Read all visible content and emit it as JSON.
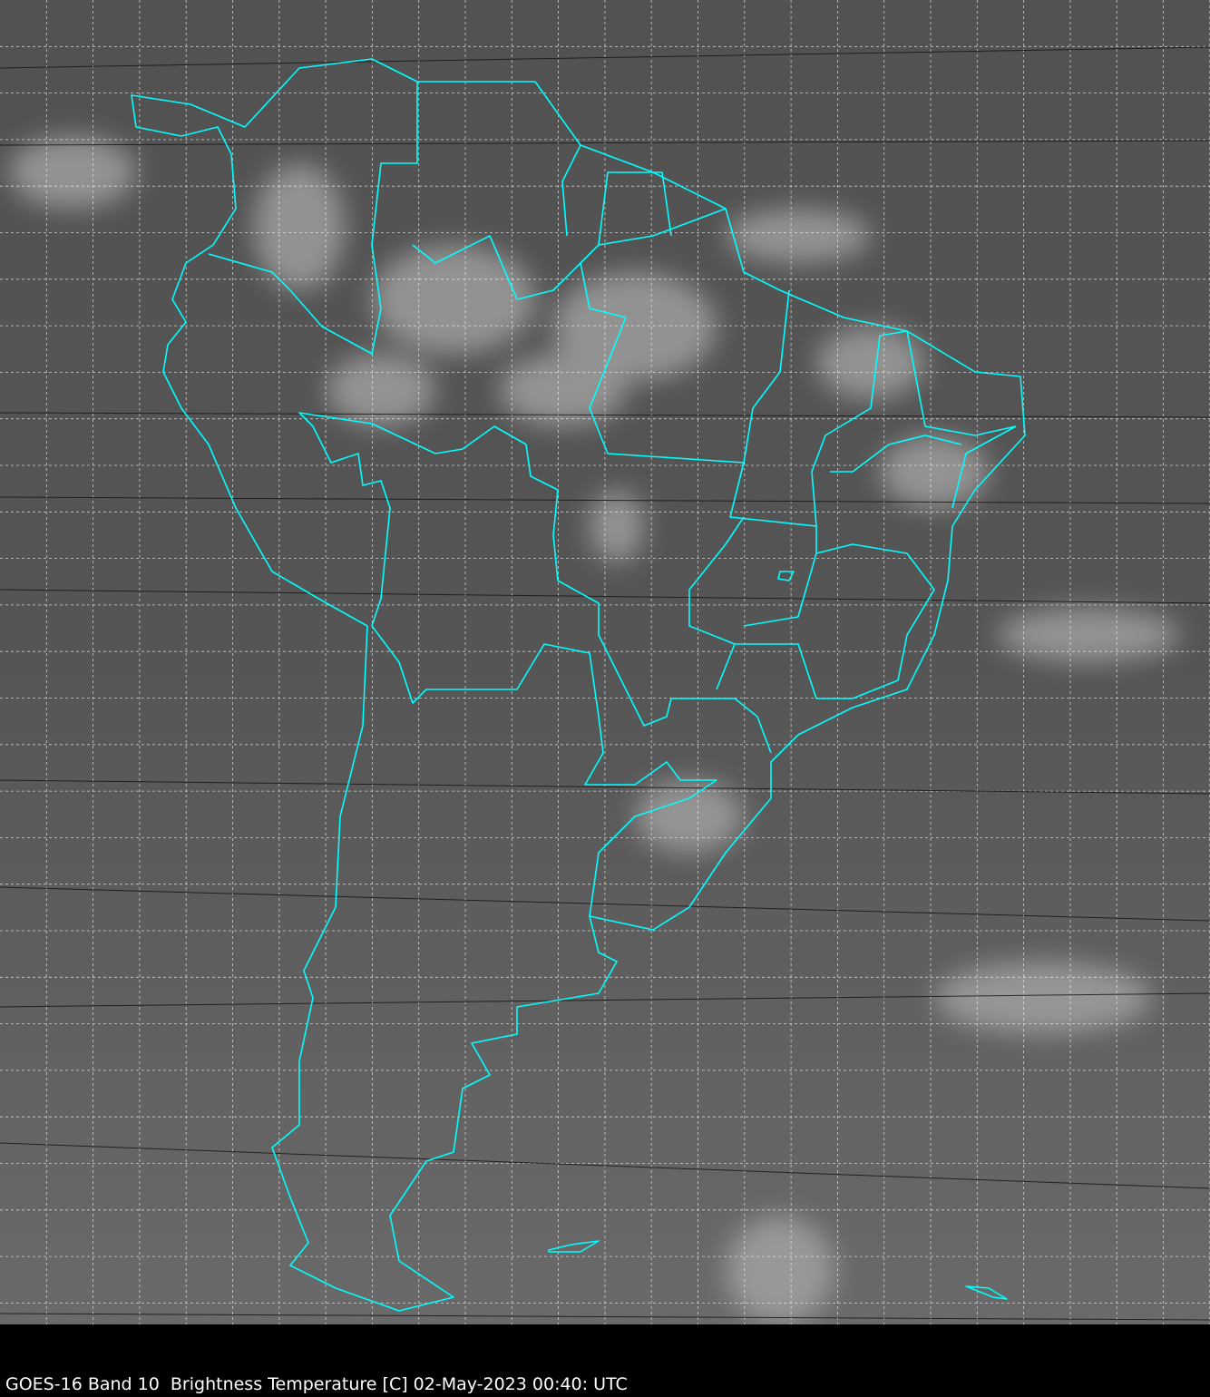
{
  "caption": "GOES-16 Band 10  Brightness Temperature [C] 02-May-2023 00:40: UTC",
  "colors": {
    "coastline": "#00ffff",
    "grid": "#ffffff",
    "background": "#000000",
    "imagery_base": "#5a5a5a"
  },
  "map": {
    "type": "satellite-infrared-imagery",
    "region": "South America",
    "overlays": [
      "coastlines",
      "country-borders",
      "state-borders",
      "lat-lon-grid"
    ]
  }
}
